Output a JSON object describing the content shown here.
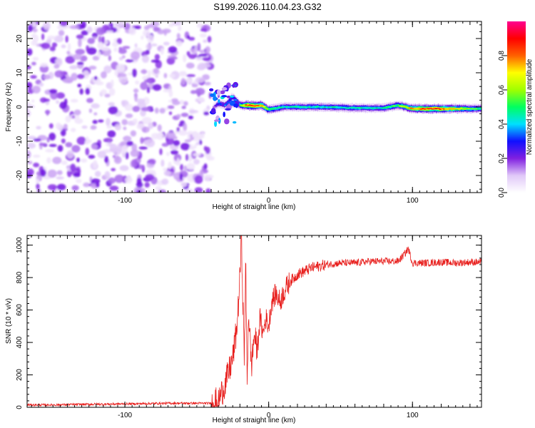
{
  "title": "S199.2026.110.04.23.G32",
  "chart_data": [
    {
      "type": "heatmap",
      "xlabel": "Height of straight line (km)",
      "ylabel": "Frequency (Hz)",
      "xlim": [
        -168,
        148
      ],
      "ylim": [
        -25,
        25
      ],
      "xticks": [
        -100,
        0,
        100
      ],
      "xtick_labels": [
        "-100",
        "0",
        "100"
      ],
      "yticks": [
        -20,
        -10,
        0,
        10,
        20
      ],
      "ytick_labels": [
        "-20",
        "-10",
        "0",
        "10",
        "20"
      ],
      "colorbar": {
        "label": "Normalized spectral amplitude",
        "range": [
          0,
          1
        ],
        "ticks": [
          0.0,
          0.2,
          0.4,
          0.6,
          0.8
        ],
        "tick_labels": [
          "0.0",
          "0.2",
          "0.4",
          "0.6",
          "0.8"
        ],
        "colors": [
          "#ffffff",
          "#e0c8f8",
          "#8020e0",
          "#1010ff",
          "#00e0ff",
          "#00ff60",
          "#a0ff00",
          "#ffff00",
          "#ff6000",
          "#ff0000",
          "#ff0090"
        ]
      },
      "noise_region": {
        "x_range": [
          -168,
          -40
        ],
        "y_range": [
          -25,
          25
        ],
        "amplitude": "0.0-0.2"
      },
      "signal_trace": [
        {
          "x": -38,
          "y": 0.0,
          "amplitude": 0.15
        },
        {
          "x": -35,
          "y": 1.0,
          "amplitude": 0.3
        },
        {
          "x": -30,
          "y": 0.5,
          "amplitude": 0.35
        },
        {
          "x": -25,
          "y": 3.0,
          "amplitude": 0.3
        },
        {
          "x": -20,
          "y": 0.5,
          "amplitude": 0.5
        },
        {
          "x": -15,
          "y": 0.5,
          "amplitude": 0.85
        },
        {
          "x": -10,
          "y": 0.3,
          "amplitude": 0.85
        },
        {
          "x": -5,
          "y": 0.5,
          "amplitude": 0.75
        },
        {
          "x": 0,
          "y": -0.8,
          "amplitude": 0.55
        },
        {
          "x": 10,
          "y": 0.0,
          "amplitude": 0.45
        },
        {
          "x": 20,
          "y": 0.0,
          "amplitude": 0.45
        },
        {
          "x": 40,
          "y": 0.0,
          "amplitude": 0.45
        },
        {
          "x": 60,
          "y": -0.3,
          "amplitude": 0.45
        },
        {
          "x": 80,
          "y": -0.3,
          "amplitude": 0.45
        },
        {
          "x": 90,
          "y": 0.5,
          "amplitude": 0.55
        },
        {
          "x": 100,
          "y": -0.5,
          "amplitude": 0.75
        },
        {
          "x": 110,
          "y": -0.5,
          "amplitude": 0.85
        },
        {
          "x": 120,
          "y": -0.5,
          "amplitude": 0.85
        },
        {
          "x": 130,
          "y": -0.5,
          "amplitude": 0.7
        },
        {
          "x": 140,
          "y": -0.5,
          "amplitude": 0.55
        },
        {
          "x": 148,
          "y": -0.5,
          "amplitude": 0.5
        }
      ]
    },
    {
      "type": "line",
      "xlabel": "Height of straight line (km)",
      "ylabel": "SNR (10 * v/v)",
      "xlim": [
        -168,
        148
      ],
      "ylim": [
        0,
        1060
      ],
      "xticks": [
        -100,
        0,
        100
      ],
      "xtick_labels": [
        "-100",
        "0",
        "100"
      ],
      "yticks": [
        0,
        200,
        400,
        600,
        800,
        1000
      ],
      "ytick_labels": [
        "0",
        "200",
        "400",
        "600",
        "800",
        "1000"
      ],
      "series": [
        {
          "name": "SNR",
          "color": "#e8201e",
          "x": [
            -168,
            -150,
            -130,
            -110,
            -90,
            -70,
            -50,
            -40,
            -35,
            -30,
            -25,
            -22,
            -20,
            -19,
            -18,
            -17,
            -16,
            -15,
            -14,
            -12,
            -10,
            -8,
            -6,
            -4,
            -2,
            0,
            2,
            5,
            8,
            10,
            13,
            15,
            18,
            20,
            25,
            30,
            35,
            40,
            50,
            60,
            70,
            80,
            90,
            95,
            97,
            100,
            110,
            120,
            130,
            140,
            148
          ],
          "y": [
            15,
            15,
            18,
            20,
            22,
            25,
            25,
            25,
            40,
            150,
            300,
            500,
            800,
            1050,
            700,
            300,
            900,
            150,
            600,
            250,
            450,
            350,
            550,
            450,
            550,
            500,
            650,
            700,
            650,
            700,
            750,
            780,
            800,
            820,
            840,
            860,
            870,
            880,
            890,
            890,
            900,
            900,
            900,
            950,
            980,
            890,
            890,
            895,
            890,
            895,
            895
          ]
        }
      ]
    }
  ]
}
